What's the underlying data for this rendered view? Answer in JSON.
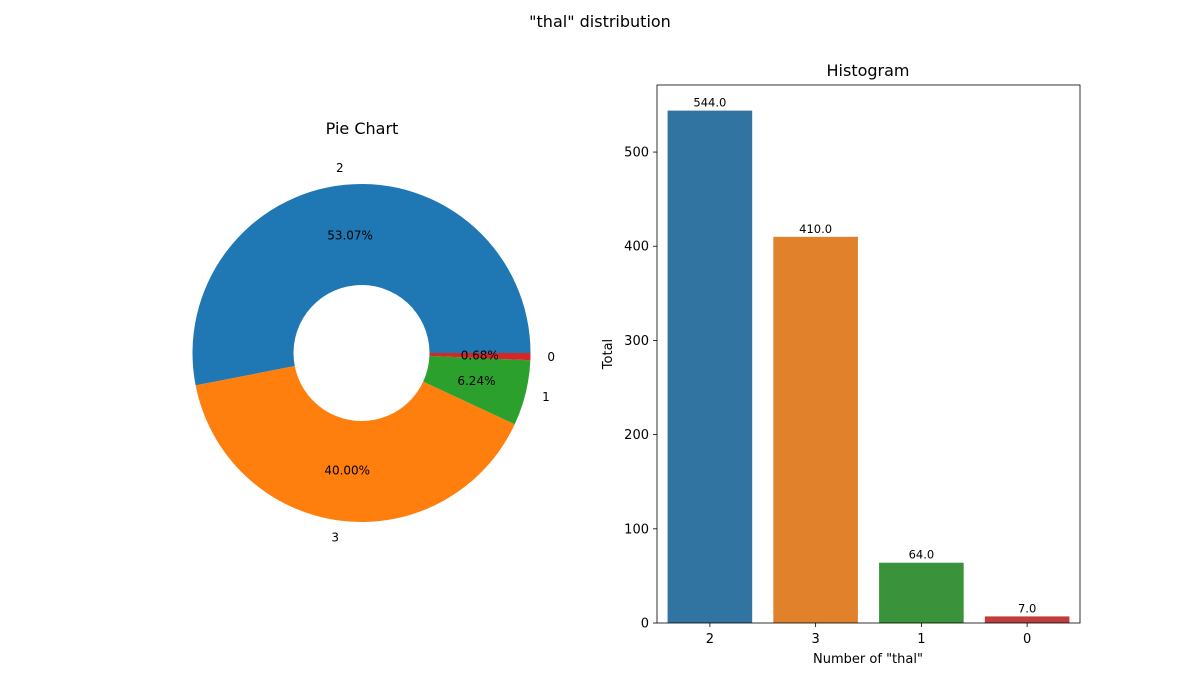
{
  "figure": {
    "title": "\"thal\" distribution"
  },
  "chart_data": [
    {
      "type": "pie",
      "title": "Pie Chart",
      "donut": true,
      "categories": [
        "2",
        "3",
        "1",
        "0"
      ],
      "values": [
        544,
        410,
        64,
        7
      ],
      "percent_labels": [
        "53.07%",
        "40.00%",
        "6.24%",
        "0.68%"
      ],
      "colors": [
        "#1f77b4",
        "#ff7f0e",
        "#2ca02c",
        "#d62728"
      ]
    },
    {
      "type": "bar",
      "title": "Histogram",
      "categories": [
        "2",
        "3",
        "1",
        "0"
      ],
      "values": [
        544,
        410,
        64,
        7
      ],
      "value_labels": [
        "544.0",
        "410.0",
        "64.0",
        "7.0"
      ],
      "xlabel": "Number of \"thal\"",
      "ylabel": "Total",
      "ylim": [
        0,
        571.2
      ],
      "yticks": [
        0,
        100,
        200,
        300,
        400,
        500
      ],
      "colors": [
        "#3274a1",
        "#e1812c",
        "#3a923a",
        "#c03d3e"
      ],
      "grid": false
    }
  ]
}
